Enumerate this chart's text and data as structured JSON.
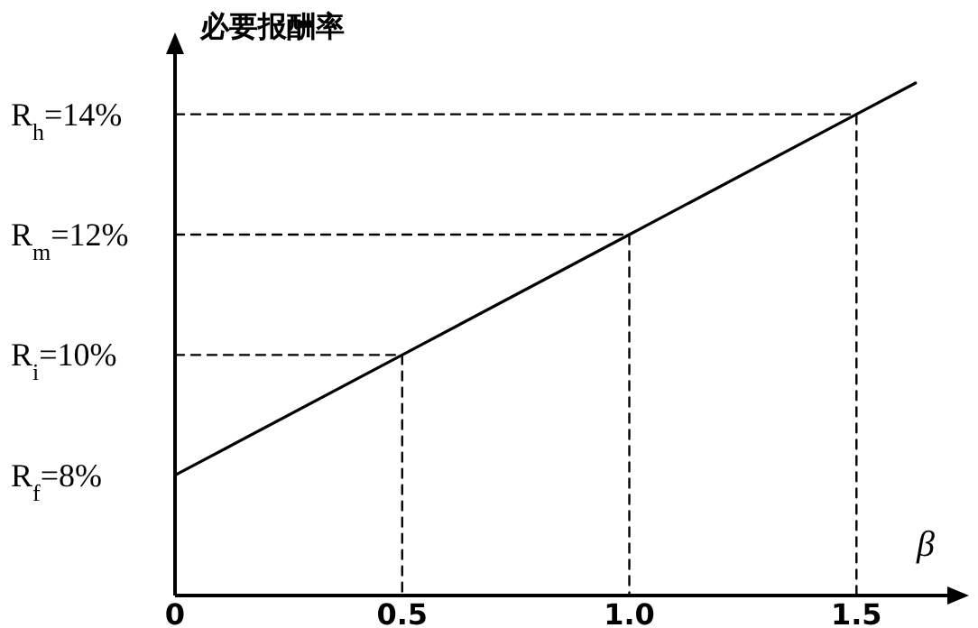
{
  "chart_data": {
    "type": "line",
    "xlabel": "β",
    "ylabel": "必要报酬率",
    "xlim": [
      0,
      1.7
    ],
    "ylim": [
      6,
      15
    ],
    "xticks": [
      0,
      {
        "value": 0.5,
        "label": "0.5"
      },
      {
        "value": 1,
        "label": "1.0"
      },
      {
        "value": 1.5,
        "label": "1.5"
      }
    ],
    "yticks": [
      {
        "value": 8,
        "label": "R$_{f}$=8%"
      },
      {
        "value": 10,
        "label": "R$_{i}$=10%"
      },
      {
        "value": 12,
        "label": "R$_{m}$=12%"
      },
      {
        "value": 14,
        "label": "R$_{h}$=14%"
      }
    ],
    "grid": false,
    "marker": "none",
    "series": [
      {
        "color": "#000000",
        "line_style": "solid",
        "x": [
          0,
          0.5,
          1,
          1.5,
          1.63
        ],
        "values": [
          8,
          10,
          12,
          14,
          14.52
        ]
      },
      {
        "color": "#000000",
        "line_style": "dashed",
        "x": [
          0,
          0.5,
          0.5
        ],
        "values": [
          10,
          10,
          6
        ]
      },
      {
        "color": "#000000",
        "line_style": "dashed",
        "x": [
          0,
          1,
          1
        ],
        "values": [
          12,
          12,
          6
        ]
      },
      {
        "color": "#000000",
        "line_style": "dashed",
        "x": [
          0,
          1.5,
          1.5
        ],
        "values": [
          14,
          14,
          6
        ]
      }
    ]
  }
}
